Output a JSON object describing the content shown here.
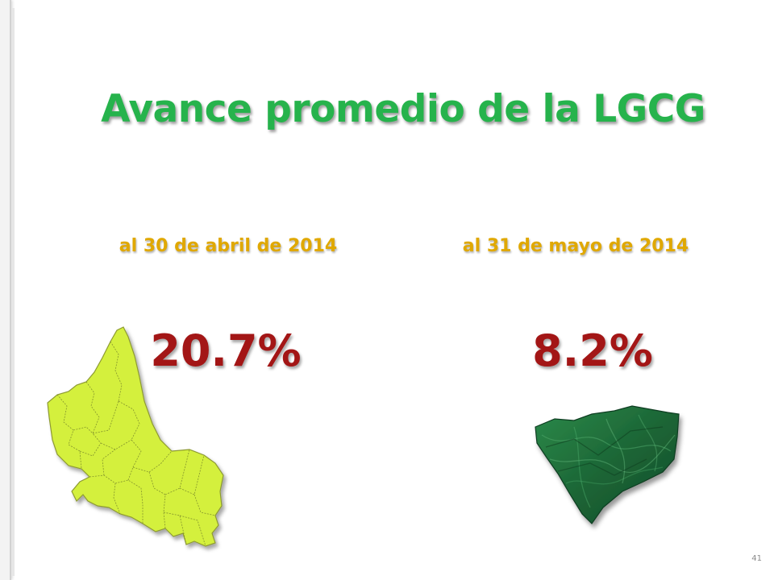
{
  "slide": {
    "title": "Avance promedio de la LGCG",
    "left": {
      "date_label": "al 30 de abril de 2014",
      "percent": "20.7%"
    },
    "right": {
      "date_label": "al 31 de mayo de 2014",
      "percent": "8.2%"
    },
    "page_number": "41"
  },
  "colors": {
    "title": "#26b34c",
    "date_labels": "#e0a800",
    "percentages": "#a31616",
    "state_map_fill": "#d4f03c",
    "municipality_map_fill": "#1f6e3a"
  },
  "icons": {
    "state_map": "state-map-icon",
    "municipality_map": "municipality-map-icon"
  }
}
